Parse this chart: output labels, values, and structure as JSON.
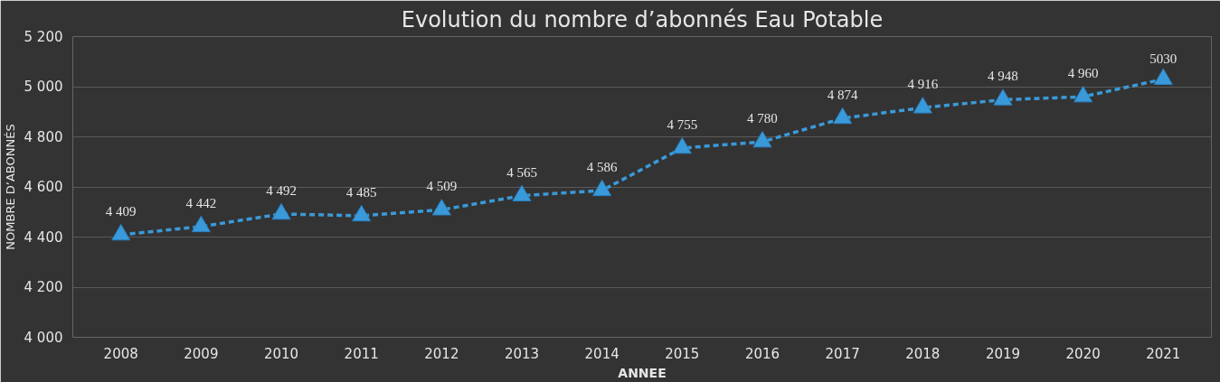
{
  "chart_data": {
    "type": "line",
    "title": "Evolution du nombre d’abonnés Eau Potable",
    "xlabel": "ANNEE",
    "ylabel": "NOMBRE D’ABONNÉS",
    "categories": [
      "2008",
      "2009",
      "2010",
      "2011",
      "2012",
      "2013",
      "2014",
      "2015",
      "2016",
      "2017",
      "2018",
      "2019",
      "2020",
      "2021"
    ],
    "series": [
      {
        "color": "#3a9ad9",
        "values": [
          4409,
          4442,
          4492,
          4485,
          4509,
          4565,
          4586,
          4755,
          4780,
          4874,
          4916,
          4948,
          4960,
          5030
        ],
        "value_labels": [
          "4 409",
          "4 442",
          "4 492",
          "4 485",
          "4 509",
          "4 565",
          "4 586",
          "4 755",
          "4 780",
          "4 874",
          "4 916",
          "4 948",
          "4 960",
          "5030"
        ]
      }
    ],
    "ylim": [
      4000,
      5200
    ],
    "yticks": [
      {
        "value": 4000,
        "label": "4 000"
      },
      {
        "value": 4200,
        "label": "4 200"
      },
      {
        "value": 4400,
        "label": "4 400"
      },
      {
        "value": 4600,
        "label": "4 600"
      },
      {
        "value": 4800,
        "label": "4 800"
      },
      {
        "value": 5000,
        "label": "5 000"
      },
      {
        "value": 5200,
        "label": "5 200"
      }
    ],
    "grid": "y",
    "marker": "triangle",
    "line_style": "dashed"
  }
}
